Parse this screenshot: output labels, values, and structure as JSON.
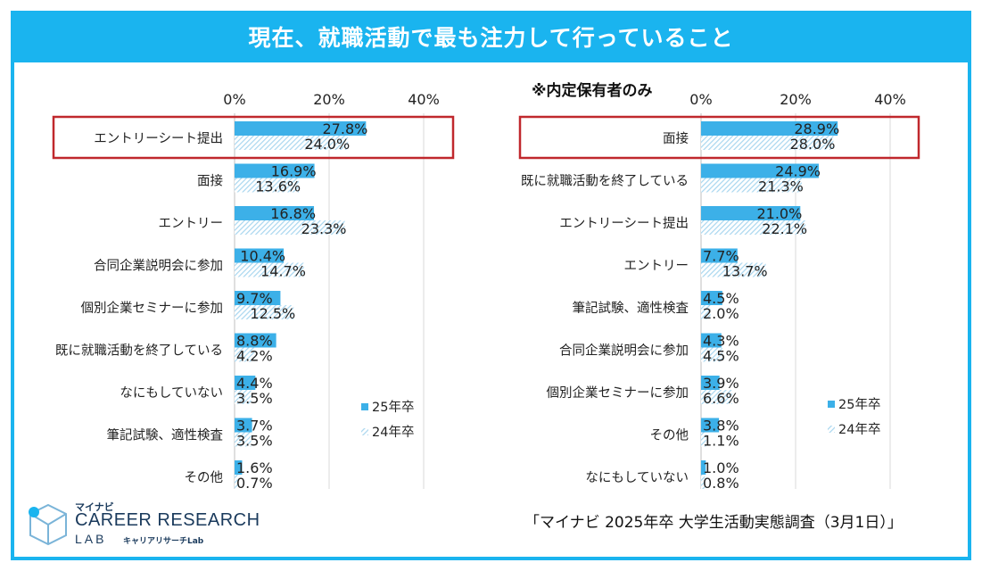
{
  "title": "現在、就職活動で最も注力して行っていること",
  "source": "「マイナビ 2025年卒 大学生活動実態調査（3月1日）」",
  "logo": {
    "top": "マイナビ",
    "main": "CAREER RESEARCH",
    "sub": "LAB",
    "kana": "キャリアリサーチLab"
  },
  "colors": {
    "series_25": "#3cb0e8",
    "series_24": "#a8d6ef",
    "highlight_border": "#c0282d",
    "banner": "#1ab4ef"
  },
  "chart_data": [
    {
      "type": "bar",
      "orientation": "horizontal",
      "subtitle": "",
      "xlim": [
        0,
        40
      ],
      "x_ticks": [
        "0%",
        "20%",
        "40%"
      ],
      "categories": [
        "エントリーシート提出",
        "面接",
        "エントリー",
        "合同企業説明会に参加",
        "個別企業セミナーに参加",
        "既に就職活動を終了している",
        "なにもしていない",
        "筆記試験、適性検査",
        "その他"
      ],
      "series": [
        {
          "name": "25年卒",
          "values": [
            27.8,
            16.9,
            16.8,
            10.4,
            9.7,
            8.8,
            4.4,
            3.7,
            1.6
          ],
          "labels": [
            "27.8%",
            "16.9%",
            "16.8%",
            "10.4%",
            "9.7%",
            "8.8%",
            "4.4%",
            "3.7%",
            "1.6%"
          ]
        },
        {
          "name": "24年卒",
          "values": [
            24.0,
            13.6,
            23.3,
            14.7,
            12.5,
            4.2,
            3.5,
            3.5,
            0.7
          ],
          "labels": [
            "24.0%",
            "13.6%",
            "23.3%",
            "14.7%",
            "12.5%",
            "4.2%",
            "3.5%",
            "3.5%",
            "0.7%"
          ]
        }
      ],
      "highlighted_category": "エントリーシート提出",
      "legend": [
        "25年卒",
        "24年卒"
      ]
    },
    {
      "type": "bar",
      "orientation": "horizontal",
      "subtitle": "※内定保有者のみ",
      "xlim": [
        0,
        40
      ],
      "x_ticks": [
        "0%",
        "20%",
        "40%"
      ],
      "categories": [
        "面接",
        "既に就職活動を終了している",
        "エントリーシート提出",
        "エントリー",
        "筆記試験、適性検査",
        "合同企業説明会に参加",
        "個別企業セミナーに参加",
        "その他",
        "なにもしていない"
      ],
      "series": [
        {
          "name": "25年卒",
          "values": [
            28.9,
            24.9,
            21.0,
            7.7,
            4.5,
            4.3,
            3.9,
            3.8,
            1.0
          ],
          "labels": [
            "28.9%",
            "24.9%",
            "21.0%",
            "7.7%",
            "4.5%",
            "4.3%",
            "3.9%",
            "3.8%",
            "1.0%"
          ]
        },
        {
          "name": "24年卒",
          "values": [
            28.0,
            21.3,
            22.1,
            13.7,
            2.0,
            4.5,
            6.6,
            1.1,
            0.8
          ],
          "labels": [
            "28.0%",
            "21.3%",
            "22.1%",
            "13.7%",
            "2.0%",
            "4.5%",
            "6.6%",
            "1.1%",
            "0.8%"
          ]
        }
      ],
      "highlighted_category": "面接",
      "legend": [
        "25年卒",
        "24年卒"
      ]
    }
  ]
}
